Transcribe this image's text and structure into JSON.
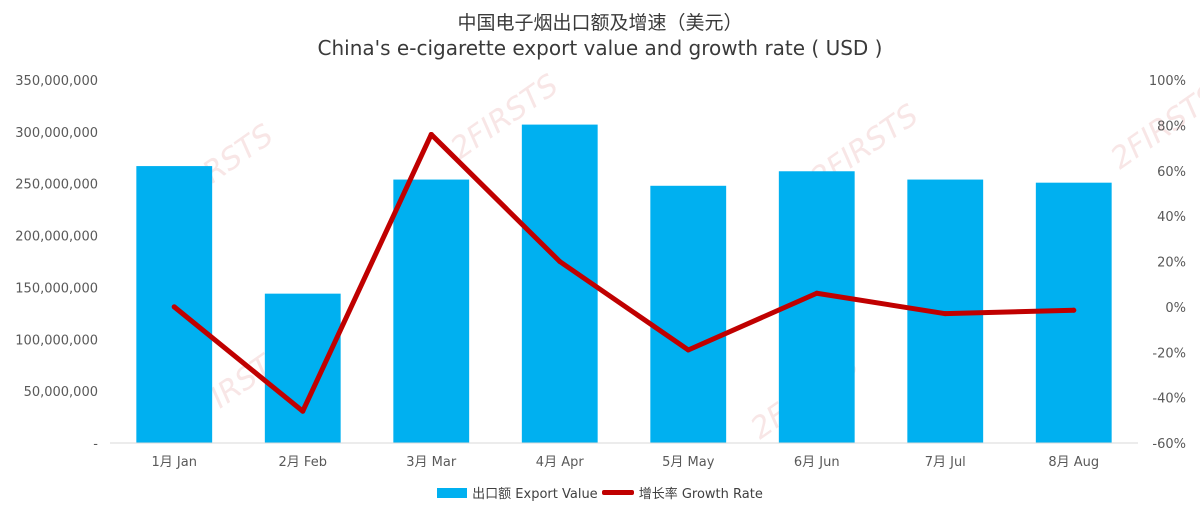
{
  "title_zh": "中国电子烟出口额及增速（美元）",
  "title_en": "China's e-cigarette export value and growth rate ( USD )",
  "watermark_text": "2FIRSTS",
  "colors": {
    "bar": "#00b0f0",
    "line": "#c00000",
    "axis": "#d9d9d9",
    "grid": "#ffffff"
  },
  "chart_data": {
    "type": "bar",
    "categories": [
      "1月 Jan",
      "2月 Feb",
      "3月 Mar",
      "4月 Apr",
      "5月 May",
      "6月 Jun",
      "7月 Jul",
      "8月 Aug"
    ],
    "series": [
      {
        "name": "出口额 Export Value",
        "type": "bar",
        "axis": "left",
        "values": [
          267000000,
          144000000,
          254000000,
          307000000,
          248000000,
          262000000,
          254000000,
          251000000
        ]
      },
      {
        "name": "增长率 Growth Rate",
        "type": "line",
        "axis": "right",
        "values": [
          0.0,
          -46.0,
          76.0,
          20.0,
          -19.0,
          6.0,
          -3.0,
          -1.5
        ]
      }
    ],
    "left_axis": {
      "min": 0,
      "max": 350000000,
      "step": 50000000,
      "tick_labels": [
        "-",
        "50,000,000",
        "100,000,000",
        "150,000,000",
        "200,000,000",
        "250,000,000",
        "300,000,000",
        "350,000,000"
      ]
    },
    "right_axis": {
      "min": -60,
      "max": 100,
      "step": 20,
      "tick_labels": [
        "-60%",
        "-40%",
        "-20%",
        "0%",
        "20%",
        "40%",
        "60%",
        "80%",
        "100%"
      ]
    },
    "grid": false,
    "legend": "bottom"
  }
}
